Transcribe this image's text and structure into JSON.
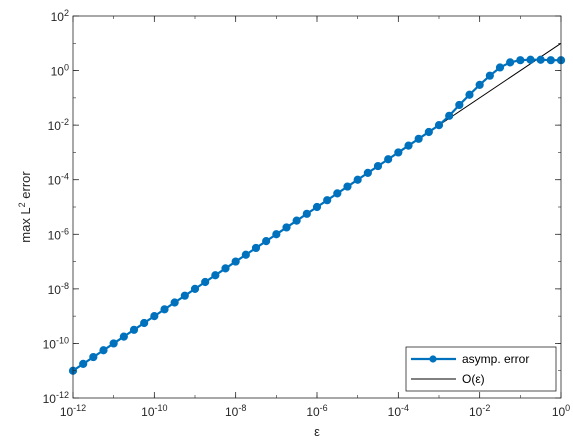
{
  "chart_data": {
    "type": "line",
    "x_scale": "log",
    "y_scale": "log",
    "xlim": [
      1e-12,
      1
    ],
    "ylim": [
      1e-12,
      100
    ],
    "xlabel": "ε",
    "ylabel_parts": {
      "pre": "max L",
      "sup": "2",
      "post": " error"
    },
    "x_ticks": [
      {
        "value": 1e-12,
        "base": "10",
        "exp": "-12"
      },
      {
        "value": 1e-10,
        "base": "10",
        "exp": "-10"
      },
      {
        "value": 1e-08,
        "base": "10",
        "exp": "-8"
      },
      {
        "value": 1e-06,
        "base": "10",
        "exp": "-6"
      },
      {
        "value": 0.0001,
        "base": "10",
        "exp": "-4"
      },
      {
        "value": 0.01,
        "base": "10",
        "exp": "-2"
      },
      {
        "value": 1,
        "base": "10",
        "exp": "0"
      }
    ],
    "y_ticks": [
      {
        "value": 1e-12,
        "base": "10",
        "exp": "-12"
      },
      {
        "value": 1e-10,
        "base": "10",
        "exp": "-10"
      },
      {
        "value": 1e-08,
        "base": "10",
        "exp": "-8"
      },
      {
        "value": 1e-06,
        "base": "10",
        "exp": "-6"
      },
      {
        "value": 0.0001,
        "base": "10",
        "exp": "-4"
      },
      {
        "value": 0.01,
        "base": "10",
        "exp": "-2"
      },
      {
        "value": 1,
        "base": "10",
        "exp": "0"
      },
      {
        "value": 100,
        "base": "10",
        "exp": "2"
      }
    ],
    "grid": false,
    "legend_position": "bottom-right",
    "series": [
      {
        "name": "asymp. error",
        "color": "#0072BD",
        "marker": "circle",
        "x": [
          1e-12,
          1.78e-12,
          3.16e-12,
          5.62e-12,
          1e-11,
          1.78e-11,
          3.16e-11,
          5.62e-11,
          1e-10,
          1.78e-10,
          3.16e-10,
          5.62e-10,
          1e-09,
          1.78e-09,
          3.16e-09,
          5.62e-09,
          1e-08,
          1.78e-08,
          3.16e-08,
          5.62e-08,
          1e-07,
          1.78e-07,
          3.16e-07,
          5.62e-07,
          1e-06,
          1.78e-06,
          3.16e-06,
          5.62e-06,
          1e-05,
          1.78e-05,
          3.16e-05,
          5.62e-05,
          0.0001,
          0.000178,
          0.000316,
          0.000562,
          0.001,
          0.00178,
          0.00316,
          0.00562,
          0.01,
          0.0178,
          0.0316,
          0.0562,
          0.1,
          0.178,
          0.316,
          0.562,
          1
        ],
        "y": [
          1e-11,
          1.78e-11,
          3.16e-11,
          5.62e-11,
          1e-10,
          1.78e-10,
          3.16e-10,
          5.62e-10,
          1e-09,
          1.78e-09,
          3.16e-09,
          5.62e-09,
          1e-08,
          1.78e-08,
          3.16e-08,
          5.62e-08,
          1e-07,
          1.78e-07,
          3.16e-07,
          5.62e-07,
          1e-06,
          1.78e-06,
          3.16e-06,
          5.62e-06,
          1e-05,
          1.78e-05,
          3.16e-05,
          5.62e-05,
          0.0001,
          0.000178,
          0.000316,
          0.000562,
          0.001,
          0.00178,
          0.00316,
          0.00562,
          0.01,
          0.022,
          0.055,
          0.13,
          0.3,
          0.65,
          1.3,
          2.0,
          2.4,
          2.5,
          2.5,
          2.4,
          2.4
        ]
      },
      {
        "name": "O(ε)",
        "color": "#000000",
        "marker": "none",
        "x": [
          1e-12,
          1
        ],
        "y": [
          1e-11,
          10
        ]
      }
    ]
  }
}
